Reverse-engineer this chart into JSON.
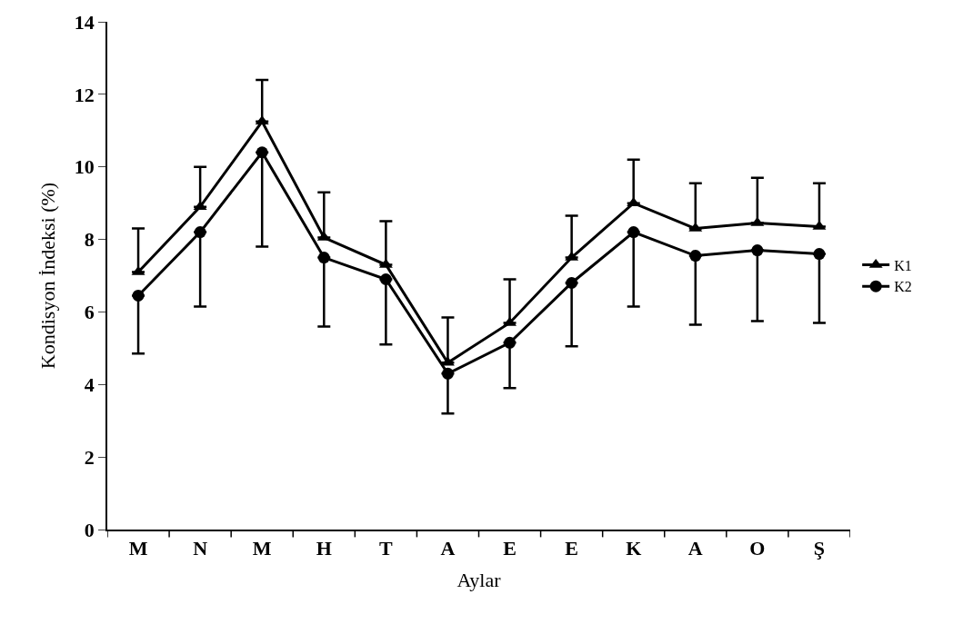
{
  "chart_data": {
    "type": "line",
    "xlabel": "Aylar",
    "ylabel": "Kondisyon İndeksi (%)",
    "categories": [
      "M",
      "N",
      "M",
      "H",
      "T",
      "A",
      "E",
      "E",
      "K",
      "A",
      "O",
      "Ş"
    ],
    "series": [
      {
        "name": "K1",
        "color": "#000000",
        "marker": "triangle",
        "values": [
          7.1,
          8.9,
          11.25,
          8.05,
          7.3,
          4.6,
          5.7,
          7.5,
          9.0,
          8.3,
          8.45,
          8.35
        ],
        "errors": [
          [
            7.1,
            8.3
          ],
          [
            8.9,
            10.0
          ],
          [
            11.25,
            12.4
          ],
          [
            8.05,
            9.3
          ],
          [
            7.3,
            8.5
          ],
          [
            4.6,
            5.85
          ],
          [
            5.7,
            6.9
          ],
          [
            7.5,
            8.65
          ],
          [
            9.0,
            10.2
          ],
          [
            8.3,
            9.55
          ],
          [
            8.45,
            9.7
          ],
          [
            8.35,
            9.55
          ]
        ]
      },
      {
        "name": "K2",
        "color": "#000000",
        "marker": "circle",
        "values": [
          6.45,
          8.2,
          10.4,
          7.5,
          6.9,
          4.3,
          5.15,
          6.8,
          8.2,
          7.55,
          7.7,
          7.6
        ],
        "errors": [
          [
            4.85,
            6.45
          ],
          [
            6.15,
            8.2
          ],
          [
            7.8,
            10.4
          ],
          [
            5.6,
            7.5
          ],
          [
            5.1,
            6.9
          ],
          [
            3.2,
            4.3
          ],
          [
            3.9,
            5.15
          ],
          [
            5.05,
            6.8
          ],
          [
            6.15,
            8.2
          ],
          [
            5.65,
            7.55
          ],
          [
            5.75,
            7.7
          ],
          [
            5.7,
            7.6
          ]
        ]
      }
    ],
    "ylim": [
      0,
      14
    ],
    "yticks": [
      0,
      2,
      4,
      6,
      8,
      10,
      12,
      14
    ],
    "legend": "right",
    "line_style": "solid"
  }
}
